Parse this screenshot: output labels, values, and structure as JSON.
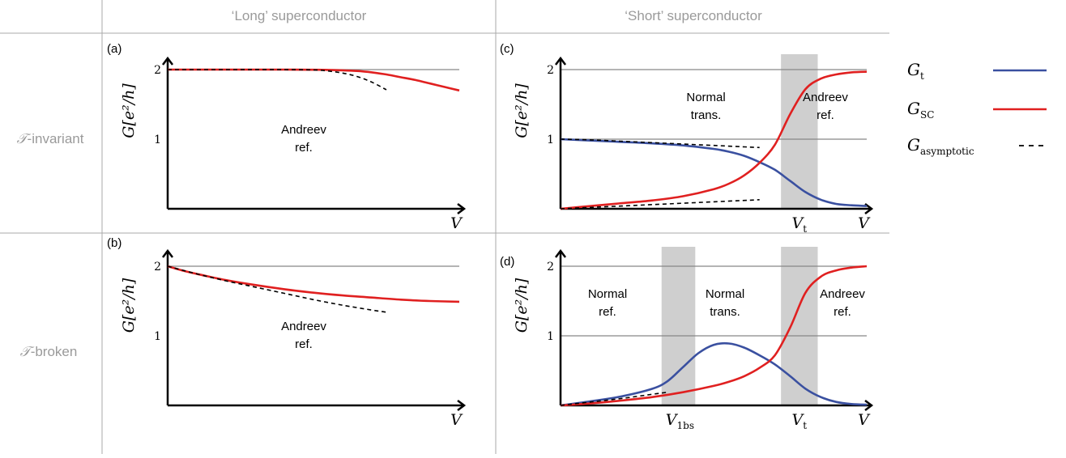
{
  "header": {
    "col_long": "‘Long’ superconductor",
    "col_short": "‘Short’ superconductor"
  },
  "rows": {
    "invariant_symbol": "𝒯",
    "invariant_text": "-invariant",
    "broken_symbol": "𝒯",
    "broken_text": "-broken"
  },
  "legend": {
    "items": [
      {
        "label": "G",
        "sub": "t",
        "color": "#3a50a0",
        "style": "solid"
      },
      {
        "label": "G",
        "sub": "SC",
        "color": "#e02020",
        "style": "solid"
      },
      {
        "label": "G",
        "sub": "asymptotic",
        "color": "#000000",
        "style": "dashed"
      }
    ]
  },
  "colors": {
    "Gt": "#3a50a0",
    "GSC": "#e02020",
    "asym": "#000000",
    "ref_line": "#888888",
    "shade": "#cfcfcf",
    "grid_table": "#aaaaaa"
  },
  "axes": {
    "ylabel": "G[e²/h]",
    "xlabel": "V"
  },
  "chart_data": [
    {
      "panel": "(a)",
      "type": "line",
      "title": "",
      "ylim": [
        0,
        2.2
      ],
      "xlim": [
        0,
        1
      ],
      "yticks": [
        "1",
        "2"
      ],
      "xticks": [],
      "ref_lines": [
        2
      ],
      "shaded": [],
      "region_labels": [
        {
          "line1": "Andreev",
          "line2": "ref."
        }
      ],
      "series": [
        {
          "key": "GSC",
          "x": [
            0,
            0.1,
            0.2,
            0.3,
            0.4,
            0.5,
            0.55,
            0.6,
            0.65,
            0.7,
            0.75,
            0.8,
            0.85,
            0.9,
            0.95,
            1.0
          ],
          "y": [
            2.0,
            2.0,
            2.0,
            2.0,
            2.0,
            1.998,
            1.995,
            1.99,
            1.98,
            1.96,
            1.93,
            1.89,
            1.85,
            1.8,
            1.75,
            1.7
          ]
        },
        {
          "key": "asym",
          "x": [
            0,
            0.2,
            0.4,
            0.5,
            0.55,
            0.6,
            0.65,
            0.7,
            0.75
          ],
          "y": [
            2.0,
            2.0,
            2.0,
            1.995,
            1.98,
            1.95,
            1.9,
            1.82,
            1.71
          ]
        }
      ]
    },
    {
      "panel": "(b)",
      "type": "line",
      "title": "",
      "ylim": [
        0,
        2.2
      ],
      "xlim": [
        0,
        1
      ],
      "yticks": [
        "1",
        "2"
      ],
      "xticks": [],
      "ref_lines": [
        2
      ],
      "shaded": [],
      "region_labels": [
        {
          "line1": "Andreev",
          "line2": "ref."
        }
      ],
      "series": [
        {
          "key": "GSC",
          "x": [
            0,
            0.05,
            0.1,
            0.2,
            0.3,
            0.4,
            0.5,
            0.6,
            0.7,
            0.8,
            0.9,
            1.0
          ],
          "y": [
            2.0,
            1.94,
            1.89,
            1.8,
            1.73,
            1.67,
            1.62,
            1.58,
            1.55,
            1.52,
            1.5,
            1.49
          ]
        },
        {
          "key": "asym",
          "x": [
            0,
            0.1,
            0.2,
            0.3,
            0.4,
            0.5,
            0.6,
            0.7,
            0.75
          ],
          "y": [
            2.0,
            1.89,
            1.79,
            1.7,
            1.61,
            1.52,
            1.44,
            1.37,
            1.34
          ]
        }
      ]
    },
    {
      "panel": "(c)",
      "type": "line",
      "title": "",
      "ylim": [
        0,
        2.2
      ],
      "xlim": [
        0,
        1
      ],
      "yticks": [
        "1",
        "2"
      ],
      "xticks": [
        {
          "x": 0.78,
          "label": "V",
          "sub": "t"
        }
      ],
      "ref_lines": [
        1,
        2
      ],
      "shaded": [
        [
          0.72,
          0.84
        ]
      ],
      "region_labels": [
        {
          "line1": "Normal",
          "line2": "trans."
        },
        {
          "line1": "Andreev",
          "line2": "ref."
        }
      ],
      "series": [
        {
          "key": "Gt",
          "x": [
            0,
            0.1,
            0.2,
            0.3,
            0.4,
            0.5,
            0.55,
            0.6,
            0.65,
            0.7,
            0.75,
            0.8,
            0.85,
            0.9,
            0.95,
            1.0
          ],
          "y": [
            1.0,
            0.98,
            0.96,
            0.94,
            0.91,
            0.86,
            0.82,
            0.76,
            0.67,
            0.56,
            0.4,
            0.24,
            0.13,
            0.07,
            0.05,
            0.04
          ]
        },
        {
          "key": "GSC",
          "x": [
            0,
            0.1,
            0.2,
            0.3,
            0.4,
            0.5,
            0.55,
            0.6,
            0.65,
            0.7,
            0.75,
            0.8,
            0.85,
            0.9,
            0.95,
            1.0
          ],
          "y": [
            0.0,
            0.04,
            0.08,
            0.12,
            0.18,
            0.28,
            0.36,
            0.48,
            0.66,
            0.92,
            1.36,
            1.72,
            1.87,
            1.93,
            1.96,
            1.97
          ]
        },
        {
          "key": "asym",
          "x": [
            0,
            0.1,
            0.2,
            0.3,
            0.4,
            0.5,
            0.6,
            0.65
          ],
          "y": [
            1.0,
            0.99,
            0.97,
            0.95,
            0.93,
            0.91,
            0.89,
            0.88
          ]
        },
        {
          "key": "asym",
          "x": [
            0,
            0.1,
            0.2,
            0.3,
            0.4,
            0.5,
            0.6,
            0.65
          ],
          "y": [
            0.0,
            0.02,
            0.04,
            0.06,
            0.08,
            0.1,
            0.12,
            0.13
          ]
        }
      ]
    },
    {
      "panel": "(d)",
      "type": "line",
      "title": "",
      "ylim": [
        0,
        2.2
      ],
      "xlim": [
        0,
        1
      ],
      "yticks": [
        "1",
        "2"
      ],
      "xticks": [
        {
          "x": 0.39,
          "label": "V",
          "sub": "1bs"
        },
        {
          "x": 0.78,
          "label": "V",
          "sub": "t"
        }
      ],
      "ref_lines": [
        1,
        2
      ],
      "shaded": [
        [
          0.33,
          0.44
        ],
        [
          0.72,
          0.84
        ]
      ],
      "region_labels": [
        {
          "line1": "Normal",
          "line2": "ref."
        },
        {
          "line1": "Normal",
          "line2": "trans."
        },
        {
          "line1": "Andreev",
          "line2": "ref."
        }
      ],
      "series": [
        {
          "key": "Gt",
          "x": [
            0,
            0.1,
            0.2,
            0.3,
            0.35,
            0.4,
            0.45,
            0.5,
            0.55,
            0.6,
            0.65,
            0.7,
            0.75,
            0.8,
            0.85,
            0.9,
            0.95,
            1.0
          ],
          "y": [
            0.0,
            0.06,
            0.13,
            0.24,
            0.35,
            0.55,
            0.75,
            0.87,
            0.89,
            0.83,
            0.72,
            0.59,
            0.42,
            0.24,
            0.12,
            0.05,
            0.02,
            0.01
          ]
        },
        {
          "key": "GSC",
          "x": [
            0,
            0.1,
            0.2,
            0.3,
            0.4,
            0.5,
            0.55,
            0.6,
            0.65,
            0.7,
            0.75,
            0.8,
            0.85,
            0.9,
            0.95,
            1.0
          ],
          "y": [
            0.0,
            0.03,
            0.07,
            0.12,
            0.19,
            0.28,
            0.34,
            0.42,
            0.54,
            0.72,
            1.12,
            1.62,
            1.85,
            1.94,
            1.98,
            2.0
          ]
        },
        {
          "key": "asym",
          "x": [
            0,
            0.1,
            0.2,
            0.3,
            0.35
          ],
          "y": [
            0.0,
            0.05,
            0.1,
            0.16,
            0.19
          ]
        }
      ]
    }
  ]
}
